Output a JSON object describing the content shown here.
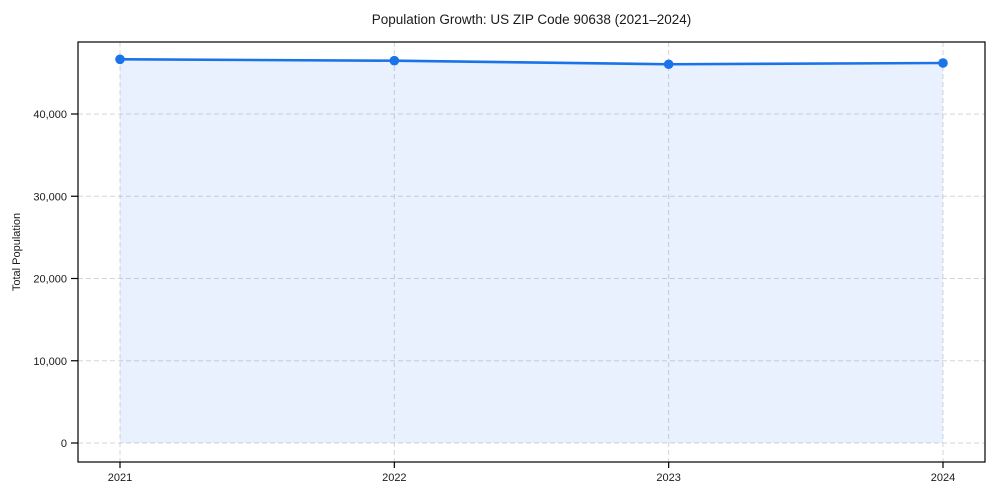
{
  "chart_data": {
    "type": "area",
    "title": "Population Growth: US ZIP Code 90638 (2021–2024)",
    "xlabel": "",
    "ylabel": "Total Population",
    "x_labels": [
      "2021",
      "2022",
      "2023",
      "2024"
    ],
    "series": [
      {
        "name": "Total Population",
        "values": [
          46650,
          46480,
          46050,
          46200
        ]
      }
    ],
    "ylim": [
      -2310,
      48754
    ],
    "yticks": [
      0,
      10000,
      20000,
      30000,
      40000
    ],
    "ytick_labels": [
      "0",
      "10,000",
      "20,000",
      "30,000",
      "40,000"
    ],
    "grid": true,
    "grid_style": "dashed",
    "legend": false,
    "marker": "circle",
    "colors": {
      "line": "#1a73e8",
      "fill": "#1a73e8",
      "fill_opacity": 0.1,
      "grid": "#d5d5d5",
      "axis": "#000000",
      "text": "#1a1a1a",
      "background": "#ffffff"
    }
  }
}
